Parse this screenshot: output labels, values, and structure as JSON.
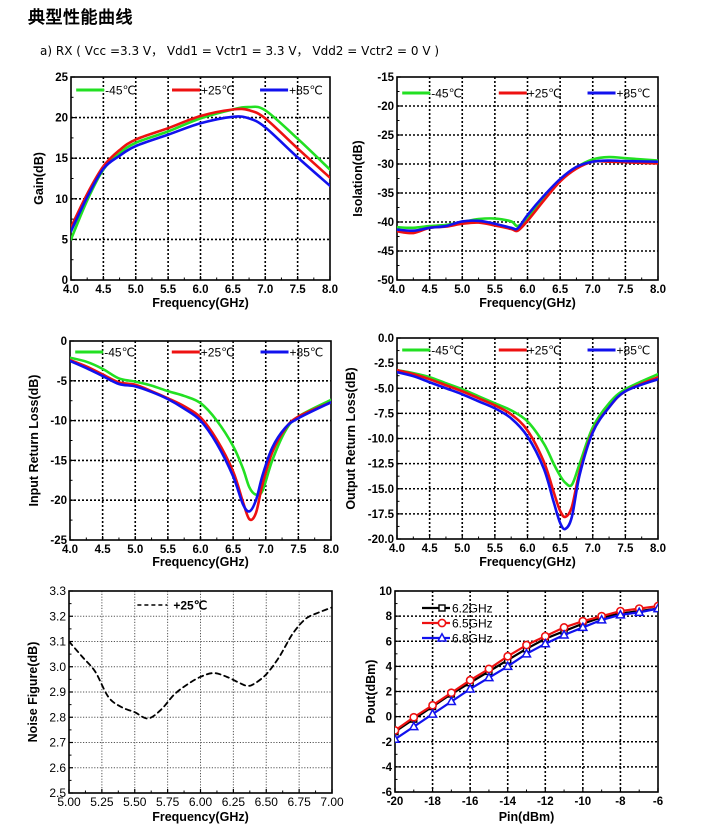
{
  "page": {
    "title": "典型性能曲线",
    "subtitle": "a) RX ( Vcc =3.3 V， Vdd1 = Vctr1 = 3.3 V， Vdd2 = Vctr2 = 0 V )"
  },
  "chart_data": [
    {
      "id": "gain",
      "type": "line",
      "title": "",
      "xlabel": "Frequency(GHz)",
      "ylabel": "Gain(dB)",
      "xlim": [
        4.0,
        8.0
      ],
      "ylim": [
        0,
        25
      ],
      "xticks": [
        "4.0",
        "4.5",
        "5.0",
        "5.5",
        "6.0",
        "6.5",
        "7.0",
        "7.5",
        "8.0"
      ],
      "yticks": [
        "0",
        "5",
        "10",
        "15",
        "20",
        "25"
      ],
      "grid": true,
      "legend": "top",
      "x": [
        4.0,
        4.25,
        4.5,
        4.75,
        5.0,
        5.5,
        6.0,
        6.5,
        6.75,
        7.0,
        7.5,
        8.0
      ],
      "series": [
        {
          "name": "-45℃",
          "color": "#22e022",
          "values": [
            5.0,
            9.8,
            13.6,
            15.6,
            16.9,
            18.3,
            19.9,
            21.0,
            21.3,
            20.9,
            17.4,
            13.6
          ]
        },
        {
          "name": "+25℃",
          "color": "#ee1111",
          "values": [
            6.5,
            10.6,
            14.0,
            16.0,
            17.3,
            18.7,
            20.2,
            21.0,
            20.9,
            19.9,
            16.2,
            12.6
          ]
        },
        {
          "name": "+85℃",
          "color": "#1111ee",
          "values": [
            6.0,
            10.2,
            13.7,
            15.3,
            16.5,
            17.9,
            19.3,
            20.1,
            19.9,
            18.8,
            15.1,
            11.6
          ]
        }
      ]
    },
    {
      "id": "isolation",
      "type": "line",
      "title": "",
      "xlabel": "Frequency(GHz)",
      "ylabel": "Isolation(dB)",
      "xlim": [
        4.0,
        8.0
      ],
      "ylim": [
        -50,
        -15
      ],
      "xticks": [
        "4.0",
        "4.5",
        "5.0",
        "5.5",
        "6.0",
        "6.5",
        "7.0",
        "7.5",
        "8.0"
      ],
      "yticks": [
        "-50",
        "-45",
        "-40",
        "-35",
        "-30",
        "-25",
        "-20",
        "-15"
      ],
      "grid": true,
      "legend": "top",
      "x": [
        4.0,
        4.25,
        4.5,
        4.75,
        5.0,
        5.25,
        5.5,
        5.75,
        5.85,
        6.0,
        6.25,
        6.5,
        6.75,
        7.0,
        7.25,
        7.5,
        8.0
      ],
      "series": [
        {
          "name": "-45℃",
          "color": "#22e022",
          "values": [
            -40.9,
            -41.0,
            -40.7,
            -40.5,
            -40.0,
            -39.5,
            -39.4,
            -39.9,
            -40.7,
            -39.3,
            -36.0,
            -32.9,
            -30.6,
            -29.2,
            -28.8,
            -29.0,
            -29.4
          ]
        },
        {
          "name": "+25℃",
          "color": "#ee1111",
          "values": [
            -41.6,
            -41.9,
            -41.0,
            -40.8,
            -40.3,
            -40.1,
            -40.6,
            -41.2,
            -41.5,
            -39.8,
            -36.3,
            -33.0,
            -30.8,
            -29.6,
            -29.6,
            -29.7,
            -29.9
          ]
        },
        {
          "name": "+85℃",
          "color": "#1111ee",
          "values": [
            -41.3,
            -41.5,
            -41.0,
            -40.7,
            -39.9,
            -39.8,
            -40.3,
            -41.0,
            -41.1,
            -38.8,
            -35.5,
            -32.6,
            -30.5,
            -29.6,
            -29.4,
            -29.5,
            -29.6
          ]
        }
      ]
    },
    {
      "id": "input-return-loss",
      "type": "line",
      "title": "",
      "xlabel": "Frequency(GHz)",
      "ylabel": "Input Return Loss(dB)",
      "xlim": [
        4.0,
        8.0
      ],
      "ylim": [
        -25,
        0
      ],
      "xticks": [
        "4.0",
        "4.5",
        "5.0",
        "5.5",
        "6.0",
        "6.5",
        "7.0",
        "7.5",
        "8.0"
      ],
      "yticks": [
        "-25",
        "-20",
        "-15",
        "-10",
        "-5",
        "0"
      ],
      "grid": true,
      "legend": "top",
      "x": [
        4.0,
        4.25,
        4.5,
        4.75,
        5.0,
        5.25,
        5.5,
        5.75,
        6.0,
        6.25,
        6.5,
        6.65,
        6.75,
        6.85,
        6.95,
        7.1,
        7.3,
        7.5,
        8.0
      ],
      "series": [
        {
          "name": "-45℃",
          "color": "#22e022",
          "values": [
            -2.1,
            -2.6,
            -3.5,
            -4.7,
            -5.1,
            -5.6,
            -6.3,
            -6.9,
            -7.8,
            -10.0,
            -13.2,
            -16.0,
            -18.4,
            -19.3,
            -18.8,
            -15.0,
            -11.3,
            -9.5,
            -7.4
          ]
        },
        {
          "name": "+25℃",
          "color": "#ee1111",
          "values": [
            -2.4,
            -3.2,
            -4.2,
            -5.2,
            -5.5,
            -6.3,
            -7.2,
            -8.2,
            -9.6,
            -12.4,
            -16.4,
            -20.2,
            -22.4,
            -21.6,
            -18.0,
            -14.0,
            -11.0,
            -9.5,
            -7.7
          ]
        },
        {
          "name": "+85℃",
          "color": "#1111ee",
          "values": [
            -2.5,
            -3.4,
            -4.4,
            -5.4,
            -5.7,
            -6.4,
            -7.3,
            -8.5,
            -10.0,
            -12.9,
            -17.0,
            -20.5,
            -21.4,
            -20.0,
            -16.9,
            -13.4,
            -10.9,
            -9.7,
            -7.7
          ]
        }
      ]
    },
    {
      "id": "output-return-loss",
      "type": "line",
      "title": "",
      "xlabel": "Frequency(GHz)",
      "ylabel": "Output Return Loss(dB)",
      "xlim": [
        4.0,
        8.0
      ],
      "ylim": [
        -20,
        0
      ],
      "xticks": [
        "4.0",
        "4.5",
        "5.0",
        "5.5",
        "6.0",
        "6.5",
        "7.0",
        "7.5",
        "8.0"
      ],
      "yticks": [
        "-20.0",
        "-17.5",
        "-15.0",
        "-12.5",
        "-10.0",
        "-7.5",
        "-5.0",
        "-2.5",
        "0.0"
      ],
      "grid": true,
      "legend": "top",
      "x": [
        4.0,
        4.25,
        4.5,
        4.75,
        5.0,
        5.25,
        5.5,
        5.75,
        6.0,
        6.25,
        6.4,
        6.5,
        6.58,
        6.68,
        6.8,
        7.0,
        7.25,
        7.5,
        8.0
      ],
      "series": [
        {
          "name": "-45℃",
          "color": "#22e022",
          "values": [
            -3.2,
            -3.5,
            -3.9,
            -4.5,
            -5.1,
            -5.8,
            -6.5,
            -7.2,
            -8.3,
            -10.5,
            -12.5,
            -13.7,
            -14.4,
            -14.6,
            -12.5,
            -8.9,
            -6.5,
            -5.1,
            -3.6
          ]
        },
        {
          "name": "+25℃",
          "color": "#ee1111",
          "values": [
            -3.2,
            -3.6,
            -4.1,
            -4.7,
            -5.3,
            -6.0,
            -6.7,
            -7.6,
            -9.2,
            -12.3,
            -15.3,
            -17.2,
            -17.8,
            -16.8,
            -13.3,
            -9.3,
            -6.9,
            -5.3,
            -3.9
          ]
        },
        {
          "name": "+85℃",
          "color": "#1111ee",
          "values": [
            -3.4,
            -3.8,
            -4.4,
            -5.0,
            -5.6,
            -6.3,
            -7.0,
            -8.0,
            -9.8,
            -13.0,
            -16.3,
            -18.4,
            -19.0,
            -17.8,
            -13.6,
            -9.4,
            -6.9,
            -5.3,
            -4.1
          ]
        }
      ]
    },
    {
      "id": "noise-figure",
      "type": "line",
      "title": "",
      "xlabel": "Frequency(GHz)",
      "ylabel": "Noise Figure(dB)",
      "xlim": [
        5.0,
        7.0
      ],
      "ylim": [
        2.5,
        3.3
      ],
      "xticks": [
        "5.00",
        "5.25",
        "5.50",
        "5.75",
        "6.00",
        "6.25",
        "6.50",
        "6.75",
        "7.00"
      ],
      "yticks": [
        "2.5",
        "2.6",
        "2.7",
        "2.8",
        "2.9",
        "3.0",
        "3.1",
        "3.2",
        "3.3"
      ],
      "grid": true,
      "legend": "top-center",
      "x": [
        5.0,
        5.1,
        5.2,
        5.3,
        5.4,
        5.5,
        5.6,
        5.7,
        5.8,
        5.9,
        6.0,
        6.1,
        6.2,
        6.3,
        6.35,
        6.4,
        6.5,
        6.6,
        6.7,
        6.8,
        6.9,
        7.0
      ],
      "series": [
        {
          "name": "+25℃",
          "color": "#000000",
          "dashed": true,
          "values": [
            3.1,
            3.04,
            2.98,
            2.88,
            2.84,
            2.82,
            2.795,
            2.83,
            2.89,
            2.93,
            2.96,
            2.975,
            2.96,
            2.935,
            2.925,
            2.93,
            2.97,
            3.04,
            3.13,
            3.19,
            3.215,
            3.235
          ]
        }
      ]
    },
    {
      "id": "pout-vs-pin",
      "type": "line",
      "title": "",
      "xlabel": "Pin(dBm)",
      "ylabel": "Pout(dBm)",
      "xlim": [
        -20,
        -6
      ],
      "ylim": [
        -6,
        10
      ],
      "xticks": [
        "-20",
        "-18",
        "-16",
        "-14",
        "-12",
        "-10",
        "-8",
        "-6"
      ],
      "yticks": [
        "-6",
        "-4",
        "-2",
        "0",
        "2",
        "4",
        "6",
        "8",
        "10"
      ],
      "grid": true,
      "legend": "top-left",
      "x": [
        -20,
        -19,
        -18,
        -17,
        -16,
        -15,
        -14,
        -13,
        -12,
        -11,
        -10,
        -9,
        -8,
        -7,
        -6
      ],
      "series": [
        {
          "name": "6.2GHz",
          "color": "#000000",
          "marker": "square",
          "values": [
            -1.2,
            -0.2,
            0.8,
            1.8,
            2.7,
            3.6,
            4.5,
            5.4,
            6.2,
            6.8,
            7.4,
            7.9,
            8.2,
            8.4,
            8.6
          ]
        },
        {
          "name": "6.5GHz",
          "color": "#ee1111",
          "marker": "circle",
          "values": [
            -1.1,
            -0.05,
            0.9,
            1.9,
            2.9,
            3.8,
            4.8,
            5.7,
            6.4,
            7.1,
            7.6,
            8.0,
            8.4,
            8.6,
            8.8
          ]
        },
        {
          "name": "6.8GHz",
          "color": "#1111ee",
          "marker": "triangle",
          "values": [
            -1.8,
            -0.8,
            0.2,
            1.2,
            2.2,
            3.1,
            4.0,
            5.0,
            5.8,
            6.5,
            7.1,
            7.7,
            8.1,
            8.3,
            8.6
          ]
        }
      ]
    }
  ]
}
